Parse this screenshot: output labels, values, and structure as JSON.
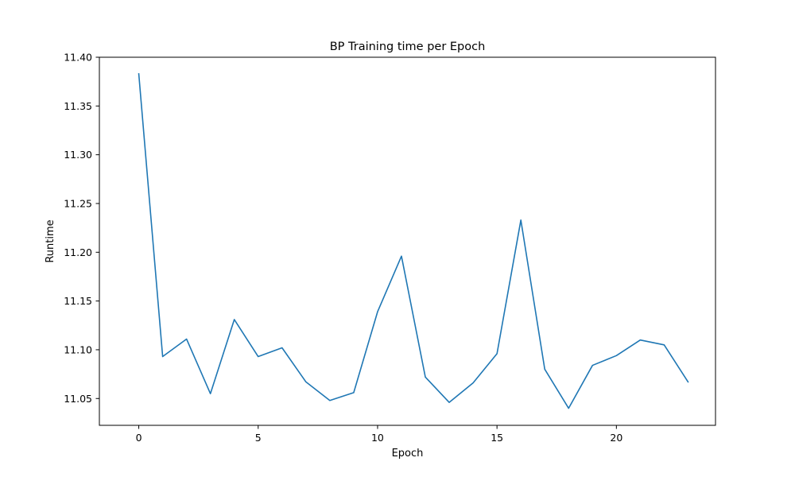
{
  "chart_data": {
    "type": "line",
    "title": "BP Training time per Epoch",
    "xlabel": "Epoch",
    "ylabel": "Runtime",
    "xlim": [
      -1.65,
      24.15
    ],
    "ylim": [
      11.0225,
      11.4
    ],
    "xticks": [
      0,
      5,
      10,
      15,
      20
    ],
    "xtick_labels": [
      "0",
      "5",
      "10",
      "15",
      "20"
    ],
    "yticks": [
      11.05,
      11.1,
      11.15,
      11.2,
      11.25,
      11.3,
      11.35,
      11.4
    ],
    "ytick_labels": [
      "11.05",
      "11.10",
      "11.15",
      "11.20",
      "11.25",
      "11.30",
      "11.35",
      "11.40"
    ],
    "grid": false,
    "series": [
      {
        "color": "#1f77b4",
        "x": [
          0,
          1,
          2,
          3,
          4,
          5,
          6,
          7,
          8,
          9,
          10,
          11,
          12,
          13,
          14,
          15,
          16,
          17,
          18,
          19,
          20,
          21,
          22,
          23
        ],
        "y": [
          11.383,
          11.093,
          11.111,
          11.055,
          11.131,
          11.093,
          11.102,
          11.067,
          11.048,
          11.056,
          11.139,
          11.196,
          11.072,
          11.046,
          11.066,
          11.096,
          11.233,
          11.08,
          11.04,
          11.084,
          11.094,
          11.11,
          11.105,
          11.067
        ]
      }
    ]
  }
}
